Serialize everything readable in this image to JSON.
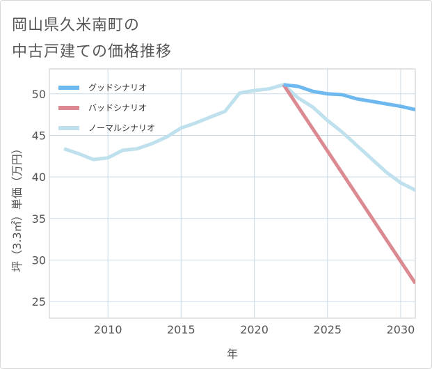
{
  "title": {
    "line1": "岡山県久米南町の",
    "line2": "中古戸建ての価格推移"
  },
  "chart_data": {
    "type": "line",
    "xlabel": "年",
    "ylabel": "坪（3.3㎡）単価（万円）",
    "xlim": [
      2006,
      2031
    ],
    "ylim": [
      23,
      53
    ],
    "x_ticks": [
      2010,
      2015,
      2020,
      2025,
      2030
    ],
    "y_ticks": [
      25,
      30,
      35,
      40,
      45,
      50
    ],
    "grid": true,
    "legend_position": "top-left",
    "series": [
      {
        "name": "グッドシナリオ",
        "color": "#6db8ee",
        "x": [
          2022,
          2023,
          2024,
          2025,
          2026,
          2027,
          2028,
          2029,
          2030,
          2031
        ],
        "y": [
          51.1,
          50.9,
          50.3,
          50.0,
          49.9,
          49.4,
          49.1,
          48.8,
          48.5,
          48.1
        ]
      },
      {
        "name": "バッドシナリオ",
        "color": "#dc8a92",
        "x": [
          2022,
          2031
        ],
        "y": [
          51.1,
          27.2
        ]
      },
      {
        "name": "ノーマルシナリオ",
        "color": "#bfe0ed",
        "x": [
          2007,
          2008,
          2009,
          2010,
          2011,
          2012,
          2013,
          2014,
          2015,
          2016,
          2017,
          2018,
          2019,
          2020,
          2021,
          2022,
          2023,
          2024,
          2025,
          2026,
          2027,
          2028,
          2029,
          2030,
          2031
        ],
        "y": [
          43.4,
          42.8,
          42.1,
          42.3,
          43.2,
          43.4,
          44.0,
          44.8,
          45.9,
          46.5,
          47.2,
          47.9,
          50.1,
          50.4,
          50.6,
          51.1,
          49.5,
          48.4,
          46.8,
          45.4,
          43.8,
          42.2,
          40.6,
          39.3,
          38.4
        ]
      }
    ]
  }
}
